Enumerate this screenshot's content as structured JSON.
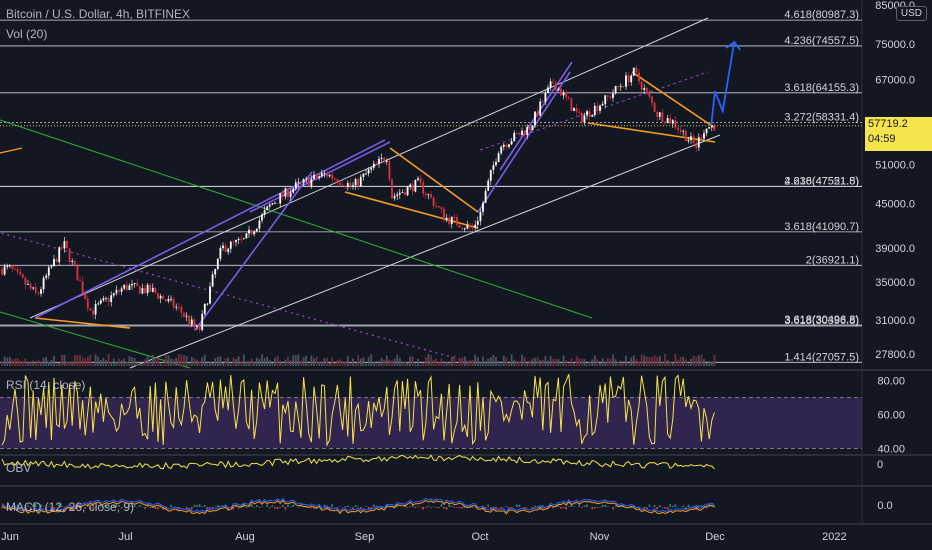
{
  "header": {
    "symbol_title": "Bitcoin / U.S. Dollar, 4h, BITFINEX",
    "volume_label": "Vol (20)",
    "currency_badge": "USD"
  },
  "current_price": {
    "value": "57719.2",
    "countdown": "04:59",
    "color": "#f5e44b"
  },
  "colors": {
    "background": "#131722",
    "grid": "#2a2e39",
    "candle_up": "#ffffff",
    "candle_down": "#e0323c",
    "channel_white": "#d1d4dc",
    "channel_purple": "#7b5ce6",
    "wedge_orange": "#f59a23",
    "trend_green": "#2fb23a",
    "dotted_purple": "#8e44ad",
    "arrow_blue": "#2962ff",
    "rsi_line": "#f5e44b",
    "rsi_band": "#4a2f72",
    "obv_line": "#f5e44b",
    "macd_line": "#2962ff",
    "macd_signal": "#f59a23"
  },
  "chart_data": [
    {
      "type": "candlestick",
      "title": "Bitcoin / U.S. Dollar, 4h, BITFINEX",
      "scale": "log",
      "ylim": [
        27000,
        85000
      ],
      "y_ticks": [
        85000,
        75000,
        67000,
        58000,
        51000,
        45000,
        39000,
        35000,
        31000,
        27800
      ],
      "x_ticks": [
        "Jun",
        "Jul",
        "Aug",
        "Sep",
        "Oct",
        "Nov",
        "Dec",
        "2022"
      ],
      "fib_levels": [
        {
          "label": "4.618(80987.3)",
          "value": 80987.3
        },
        {
          "label": "4.236(74557.5)",
          "value": 74557.5
        },
        {
          "label": "3.618(64155.3)",
          "value": 64155.3
        },
        {
          "label": "3.272(58331.4)",
          "value": 58331.4
        },
        {
          "label": "4.236(47551.8)",
          "value": 47551.8
        },
        {
          "label": "2.618(47521.5)",
          "value": 47521.5
        },
        {
          "label": "3.618(41090.7)",
          "value": 41090.7
        },
        {
          "label": "2(36921.1)",
          "value": 36921.1
        },
        {
          "label": "3.618(30496.8)",
          "value": 30496.8
        },
        {
          "label": "3.618(30396.8)",
          "value": 30396.8
        },
        {
          "label": "1.414(27057.5)",
          "value": 27057.5
        }
      ],
      "price_path": [
        [
          "2021-06-01",
          36500
        ],
        [
          "2021-06-08",
          33500
        ],
        [
          "2021-06-15",
          39500
        ],
        [
          "2021-06-22",
          31800
        ],
        [
          "2021-07-01",
          34500
        ],
        [
          "2021-07-08",
          34000
        ],
        [
          "2021-07-15",
          32000
        ],
        [
          "2021-07-20",
          29800
        ],
        [
          "2021-07-26",
          39000
        ],
        [
          "2021-08-01",
          40000
        ],
        [
          "2021-08-08",
          45000
        ],
        [
          "2021-08-14",
          47500
        ],
        [
          "2021-08-22",
          49500
        ],
        [
          "2021-08-29",
          47500
        ],
        [
          "2021-09-07",
          52500
        ],
        [
          "2021-09-08",
          46000
        ],
        [
          "2021-09-15",
          48000
        ],
        [
          "2021-09-22",
          43000
        ],
        [
          "2021-09-29",
          41500
        ],
        [
          "2021-10-01",
          43500
        ],
        [
          "2021-10-06",
          54000
        ],
        [
          "2021-10-14",
          57500
        ],
        [
          "2021-10-20",
          66500
        ],
        [
          "2021-10-27",
          59000
        ],
        [
          "2021-11-03",
          63000
        ],
        [
          "2021-11-10",
          68500
        ],
        [
          "2021-11-16",
          60000
        ],
        [
          "2021-11-20",
          58500
        ],
        [
          "2021-11-26",
          54000
        ],
        [
          "2021-11-28",
          57000
        ],
        [
          "2021-11-30",
          57719
        ]
      ],
      "projection": [
        [
          "2021-11-30",
          57719
        ],
        [
          "2021-12-01",
          64500
        ],
        [
          "2021-12-03",
          60500
        ],
        [
          "2021-12-06",
          75500
        ]
      ],
      "last_price": 57719.2
    },
    {
      "type": "line",
      "name": "RSI (14, close)",
      "ylim": [
        40,
        85
      ],
      "y_ticks": [
        80.0,
        60.0,
        40.0
      ],
      "band": [
        40,
        70
      ]
    },
    {
      "type": "line",
      "name": "OBV",
      "y_ticks": [
        0
      ]
    },
    {
      "type": "line",
      "name": "MACD (12, 26, close, 9)",
      "y_ticks": [
        0.0
      ]
    }
  ],
  "panes": {
    "rsi_label": "RSI (14, close)",
    "obv_label": "OBV",
    "macd_label": "MACD (12, 26, close, 9)"
  }
}
